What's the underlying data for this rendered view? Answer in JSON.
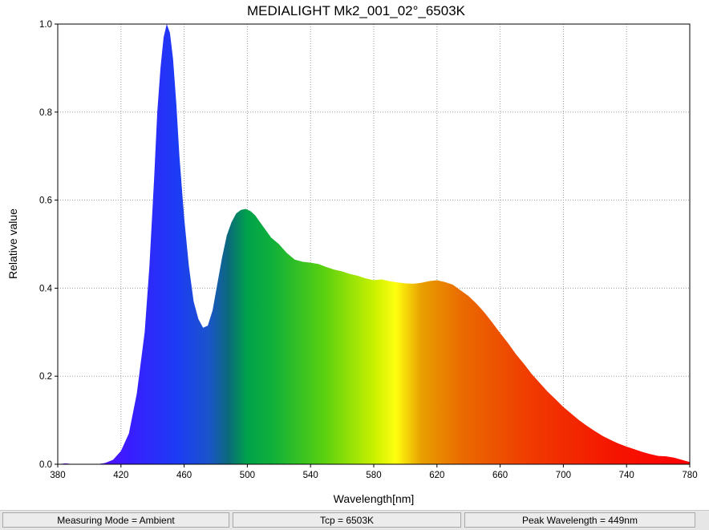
{
  "chart_data": {
    "type": "area",
    "title": "MEDIALIGHT Mk2_001_02°_6503K",
    "xlabel": "Wavelength[nm]",
    "ylabel": "Relative value",
    "xlim": [
      380,
      780
    ],
    "ylim": [
      0,
      1.0
    ],
    "x_ticks": [
      380,
      420,
      460,
      500,
      540,
      580,
      620,
      660,
      700,
      740,
      780
    ],
    "y_ticks": [
      0.0,
      0.2,
      0.4,
      0.6,
      0.8,
      1.0
    ],
    "x_tick_labels": [
      "380",
      "420",
      "460",
      "500",
      "540",
      "580",
      "620",
      "660",
      "700",
      "740",
      "780"
    ],
    "y_tick_labels": [
      "0.0",
      "0.2",
      "0.4",
      "0.6",
      "0.8",
      "1.0"
    ],
    "grid": true,
    "fill": "visible-spectrum gradient",
    "series": [
      {
        "x": [
          380,
          385,
          390,
          400,
          405,
          410,
          415,
          420,
          425,
          430,
          435,
          438,
          441,
          443,
          445,
          447,
          449,
          451,
          453,
          455,
          457,
          460,
          463,
          466,
          469,
          472,
          475,
          478,
          481,
          484,
          487,
          490,
          493,
          496,
          499,
          502,
          505,
          510,
          515,
          520,
          525,
          530,
          535,
          540,
          545,
          550,
          555,
          560,
          565,
          570,
          575,
          580,
          585,
          590,
          595,
          600,
          605,
          610,
          615,
          620,
          625,
          630,
          635,
          640,
          645,
          650,
          655,
          660,
          665,
          670,
          675,
          680,
          685,
          690,
          695,
          700,
          705,
          710,
          715,
          720,
          725,
          730,
          735,
          740,
          745,
          750,
          755,
          760,
          765,
          770,
          775,
          780
        ],
        "y": [
          0.0,
          0.002,
          0.0,
          0.0,
          0.0,
          0.003,
          0.01,
          0.03,
          0.07,
          0.16,
          0.3,
          0.45,
          0.65,
          0.8,
          0.9,
          0.97,
          1.0,
          0.98,
          0.92,
          0.82,
          0.7,
          0.56,
          0.45,
          0.37,
          0.33,
          0.31,
          0.315,
          0.35,
          0.41,
          0.47,
          0.52,
          0.55,
          0.57,
          0.578,
          0.58,
          0.575,
          0.565,
          0.54,
          0.515,
          0.5,
          0.48,
          0.465,
          0.46,
          0.458,
          0.455,
          0.448,
          0.442,
          0.438,
          0.432,
          0.428,
          0.422,
          0.418,
          0.42,
          0.416,
          0.413,
          0.411,
          0.41,
          0.412,
          0.416,
          0.418,
          0.414,
          0.408,
          0.395,
          0.382,
          0.365,
          0.345,
          0.322,
          0.298,
          0.275,
          0.25,
          0.228,
          0.205,
          0.185,
          0.165,
          0.148,
          0.13,
          0.115,
          0.1,
          0.087,
          0.075,
          0.064,
          0.055,
          0.047,
          0.04,
          0.034,
          0.028,
          0.023,
          0.019,
          0.018,
          0.015,
          0.01,
          0.005
        ]
      }
    ]
  },
  "status_bar": {
    "measuring_mode": "Measuring Mode = Ambient",
    "tcp": "Tcp = 6503K",
    "peak_wavelength": "Peak Wavelength = 449nm"
  }
}
